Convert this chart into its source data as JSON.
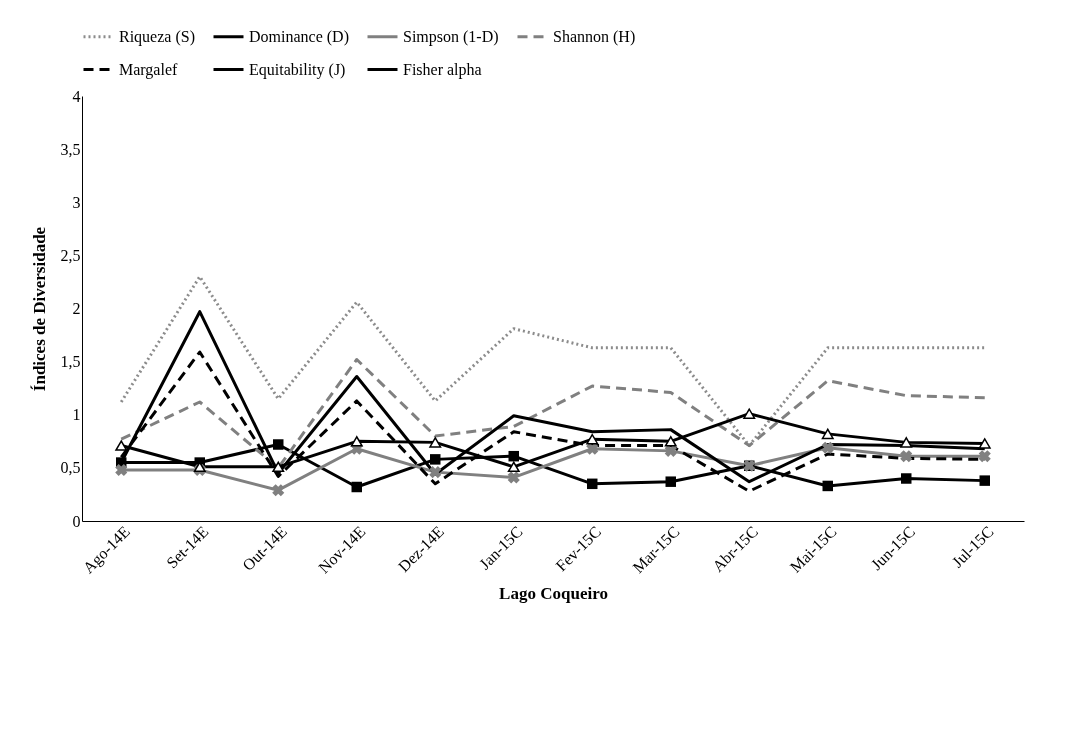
{
  "chart_data": {
    "type": "line",
    "xlabel": "Lago Coqueiro",
    "ylabel": "Índices de Diversidade",
    "categories": [
      "Ago-14E",
      "Set-14E",
      "Out-14E",
      "Nov-14E",
      "Dez-14E",
      "Jan-15C",
      "Fev-15C",
      "Mar-15C",
      "Abr-15C",
      "Mai-15C",
      "Jun-15C",
      "Jul-15C"
    ],
    "ylim": [
      0,
      4
    ],
    "yticks": [
      0,
      {
        "value": 0.5,
        "label": "0,5"
      },
      1,
      {
        "value": 1.5,
        "label": "1,5"
      },
      2,
      {
        "value": 2.5,
        "label": "2,5"
      },
      3,
      {
        "value": 3.5,
        "label": "3,5"
      },
      4
    ],
    "grid": false,
    "legend": "top",
    "series": [
      {
        "name": "Riqueza (S)",
        "color": "#8c8c8c",
        "line_style": "dotted",
        "marker": "none",
        "values": [
          1.12,
          2.3,
          1.15,
          2.06,
          1.13,
          1.81,
          1.63,
          1.63,
          0.71,
          1.63,
          1.63,
          1.63
        ]
      },
      {
        "name": "Dominance (D)",
        "color": "#000000",
        "line_style": "solid",
        "marker": "square",
        "values": [
          0.55,
          0.55,
          0.72,
          0.32,
          0.58,
          0.61,
          0.35,
          0.37,
          0.52,
          0.33,
          0.4,
          0.38
        ]
      },
      {
        "name": "Simpson (1-D)",
        "color": "#808080",
        "line_style": "solid",
        "marker": "cross",
        "values": [
          0.48,
          0.48,
          0.29,
          0.68,
          0.46,
          0.41,
          0.68,
          0.66,
          0.52,
          0.69,
          0.61,
          0.61
        ]
      },
      {
        "name": "Shannon (H)",
        "color": "#808080",
        "line_style": "dashed",
        "marker": "none",
        "values": [
          0.77,
          1.12,
          0.5,
          1.52,
          0.8,
          0.89,
          1.27,
          1.21,
          0.71,
          1.32,
          1.18,
          1.16
        ]
      },
      {
        "name": "Margalef",
        "color": "#000000",
        "line_style": "dashed",
        "marker": "none",
        "values": [
          0.6,
          1.59,
          0.42,
          1.13,
          0.35,
          0.84,
          0.71,
          0.71,
          0.28,
          0.63,
          0.59,
          0.58
        ]
      },
      {
        "name": "Equitability (J)",
        "color": "#000000",
        "line_style": "solid",
        "marker": "triangle",
        "values": [
          0.71,
          0.51,
          0.51,
          0.75,
          0.74,
          0.51,
          0.77,
          0.75,
          1.01,
          0.82,
          0.74,
          0.73
        ]
      },
      {
        "name": "Fisher alpha",
        "color": "#000000",
        "line_style": "solid",
        "marker": "none",
        "values": [
          0.55,
          1.97,
          0.45,
          1.36,
          0.44,
          0.99,
          0.84,
          0.86,
          0.37,
          0.72,
          0.71,
          0.68
        ]
      }
    ]
  }
}
